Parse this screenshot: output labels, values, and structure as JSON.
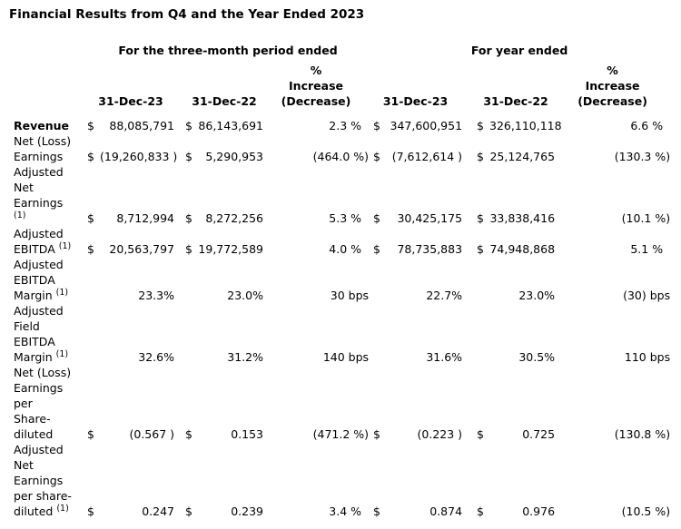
{
  "colors": {
    "text": "#000000",
    "background": "#ffffff"
  },
  "title": "Financial Results from Q4 and the Year Ended 2023",
  "table": {
    "group_headers": {
      "three_month": "For the three-month period ended",
      "year": "For year ended"
    },
    "column_headers": {
      "q_date1": "31-Dec-23",
      "q_date2": "31-Dec-22",
      "q_pct": "%\nIncrease\n(Decrease)",
      "y_date1": "31-Dec-23",
      "y_date2": "31-Dec-22",
      "y_pct": "%\nIncrease\n(Decrease)"
    },
    "rows": [
      {
        "label_lines": [
          "Revenue"
        ],
        "bold": true,
        "q": {
          "d1": "$",
          "v1": "88,085,791",
          "d2": "$",
          "v2": "86,143,691",
          "pct": "2.3 %"
        },
        "y": {
          "d1": "$",
          "v1": "347,600,951",
          "d2": "$",
          "v2": "326,110,118",
          "pct": "6.6 %"
        }
      },
      {
        "label_lines": [
          "Net (Loss)",
          "Earnings"
        ],
        "bold": false,
        "q": {
          "d1": "$",
          "v1": "(19,260,833 )",
          "d2": "$",
          "v2": "5,290,953",
          "pct": "(464.0 %)"
        },
        "y": {
          "d1": "$",
          "v1": "(7,612,614 )",
          "d2": "$",
          "v2": "25,124,765",
          "pct": "(130.3 %)"
        }
      },
      {
        "label_lines": [
          "Adjusted",
          "Net",
          "Earnings",
          "(1)"
        ],
        "bold": false,
        "q": {
          "d1": "$",
          "v1": "8,712,994",
          "d2": "$",
          "v2": "8,272,256",
          "pct": "5.3 %"
        },
        "y": {
          "d1": "$",
          "v1": "30,425,175",
          "d2": "$",
          "v2": "33,838,416",
          "pct": "(10.1 %)"
        }
      },
      {
        "label_lines": [
          "Adjusted",
          "EBITDA (1)"
        ],
        "bold": false,
        "q": {
          "d1": "$",
          "v1": "20,563,797",
          "d2": "$",
          "v2": "19,772,589",
          "pct": "4.0 %"
        },
        "y": {
          "d1": "$",
          "v1": "78,735,883",
          "d2": "$",
          "v2": "74,948,868",
          "pct": "5.1 %"
        }
      },
      {
        "label_lines": [
          "Adjusted",
          "EBITDA",
          "Margin (1)"
        ],
        "bold": false,
        "q": {
          "d1": "",
          "v1": "23.3%",
          "d2": "",
          "v2": "23.0%",
          "pct": "30 bps"
        },
        "y": {
          "d1": "",
          "v1": "22.7%",
          "d2": "",
          "v2": "23.0%",
          "pct": "(30) bps"
        }
      },
      {
        "label_lines": [
          "Adjusted",
          "Field",
          "EBITDA",
          "Margin (1)"
        ],
        "bold": false,
        "q": {
          "d1": "",
          "v1": "32.6%",
          "d2": "",
          "v2": "31.2%",
          "pct": "140 bps"
        },
        "y": {
          "d1": "",
          "v1": "31.6%",
          "d2": "",
          "v2": "30.5%",
          "pct": "110 bps"
        }
      },
      {
        "label_lines": [
          "Net (Loss)",
          "Earnings",
          "per",
          "Share-",
          "diluted"
        ],
        "bold": false,
        "q": {
          "d1": "$",
          "v1": "(0.567 )",
          "d2": "$",
          "v2": "0.153",
          "pct": "(471.2 %)"
        },
        "y": {
          "d1": "$",
          "v1": "(0.223 )",
          "d2": "$",
          "v2": "0.725",
          "pct": "(130.8 %)"
        }
      },
      {
        "label_lines": [
          "Adjusted",
          "Net",
          "Earnings",
          "per share-",
          "diluted (1)"
        ],
        "bold": false,
        "q": {
          "d1": "$",
          "v1": "0.247",
          "d2": "$",
          "v2": "0.239",
          "pct": "3.4 %"
        },
        "y": {
          "d1": "$",
          "v1": "0.874",
          "d2": "$",
          "v2": "0.976",
          "pct": "(10.5 %)"
        }
      }
    ]
  }
}
